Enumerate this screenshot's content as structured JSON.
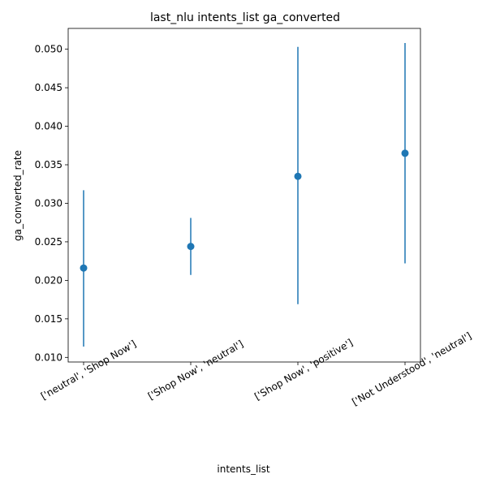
{
  "chart_data": {
    "type": "scatter",
    "title": "last_nlu intents_list ga_converted",
    "xlabel": "intents_list",
    "ylabel": "ga_converted_rate",
    "categories": [
      "['neutral', 'Shop Now']",
      "['Shop Now', 'neutral']",
      "['Shop Now', 'positive']",
      "['Not Understood', 'neutral']"
    ],
    "series": [
      {
        "values": [
          0.0216,
          0.0244,
          0.0335,
          0.0365
        ],
        "lower": [
          0.0114,
          0.0207,
          0.0169,
          0.0222
        ],
        "upper": [
          0.0317,
          0.0281,
          0.0503,
          0.0508
        ]
      }
    ],
    "ylim": [
      0.0094,
      0.0527
    ],
    "yticks": [
      "0.010",
      "0.015",
      "0.020",
      "0.025",
      "0.030",
      "0.035",
      "0.040",
      "0.045",
      "0.050"
    ],
    "grid": false,
    "color": "#1f77b4"
  }
}
